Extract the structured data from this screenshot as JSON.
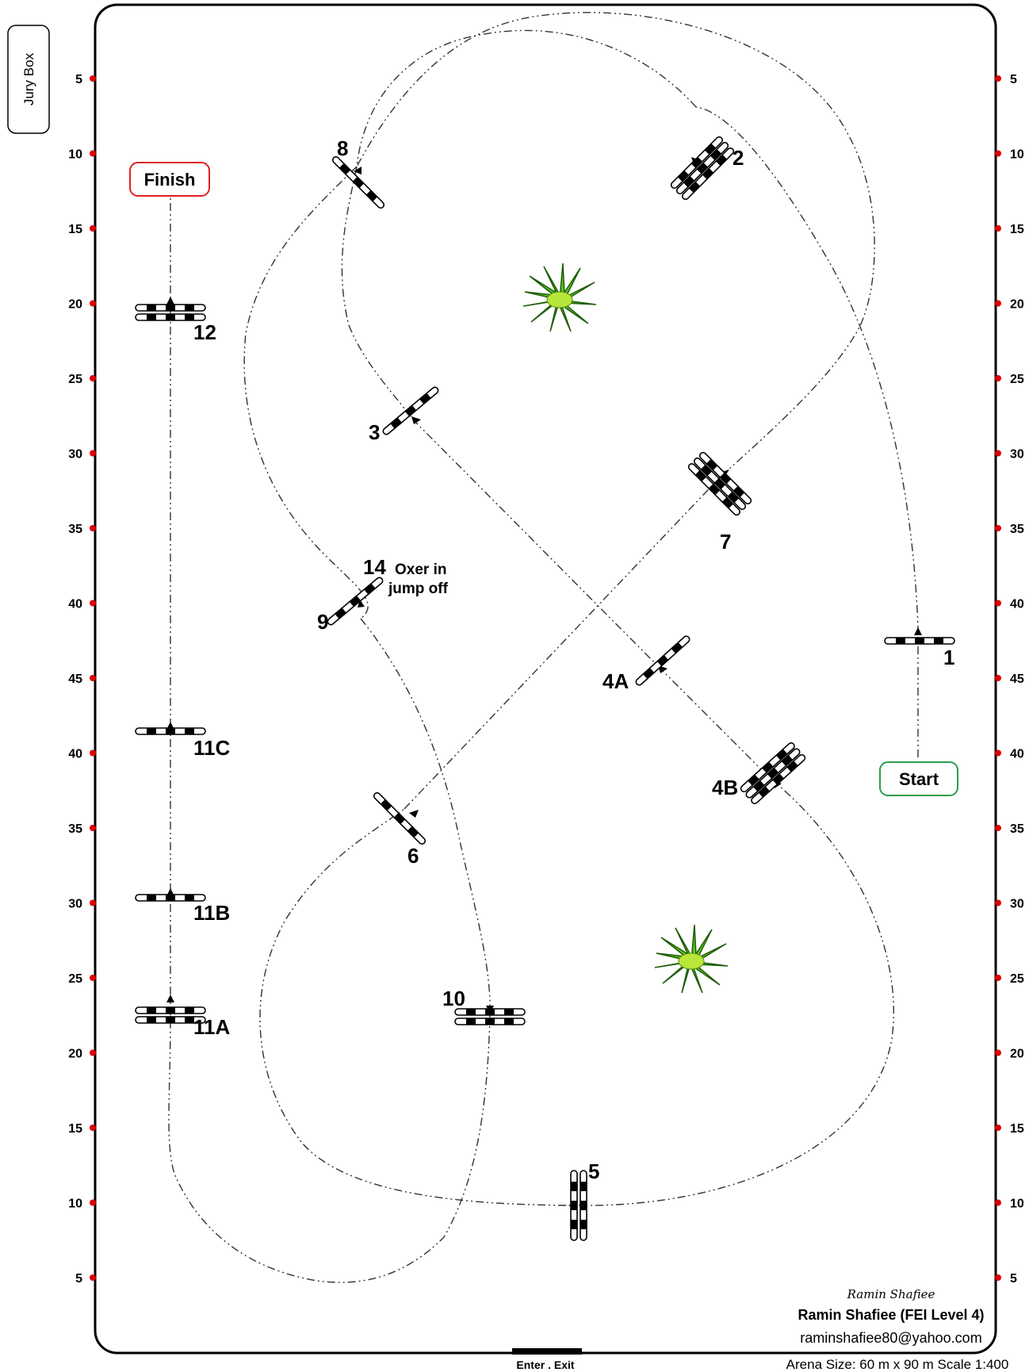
{
  "jury_box_label": "Jury Box",
  "ticks_left": [
    "5",
    "10",
    "15",
    "20",
    "25",
    "30",
    "35",
    "40",
    "45",
    "40",
    "35",
    "30",
    "25",
    "20",
    "15",
    "10",
    "5"
  ],
  "ticks_right": [
    "5",
    "10",
    "15",
    "20",
    "25",
    "30",
    "35",
    "40",
    "45",
    "40",
    "35",
    "30",
    "25",
    "20",
    "15",
    "10",
    "5"
  ],
  "start_label": "Start",
  "finish_label": "Finish",
  "jumps": {
    "j1": "1",
    "j2": "2",
    "j3": "3",
    "j4a": "4A",
    "j4b": "4B",
    "j5": "5",
    "j6": "6",
    "j7": "7",
    "j8": "8",
    "j9": "9",
    "j10": "10",
    "j11a": "11A",
    "j11b": "11B",
    "j11c": "11C",
    "j12": "12",
    "j14": "14"
  },
  "note_line1": "Oxer in",
  "note_line2": "jump off",
  "designer_signature": "Ramin Shafiee",
  "designer_name": "Ramin Shafiee (FEI Level 4)",
  "designer_email": "raminshafiee80@yahoo.com",
  "enter_exit_label": "Enter . Exit",
  "arena_info": "Arena Size: 60 m x 90 m Scale 1:400",
  "colors": {
    "tick": "#e00000",
    "start_border": "#2a9d4b",
    "finish_border": "#e02020",
    "plant": "#4caf1a"
  }
}
